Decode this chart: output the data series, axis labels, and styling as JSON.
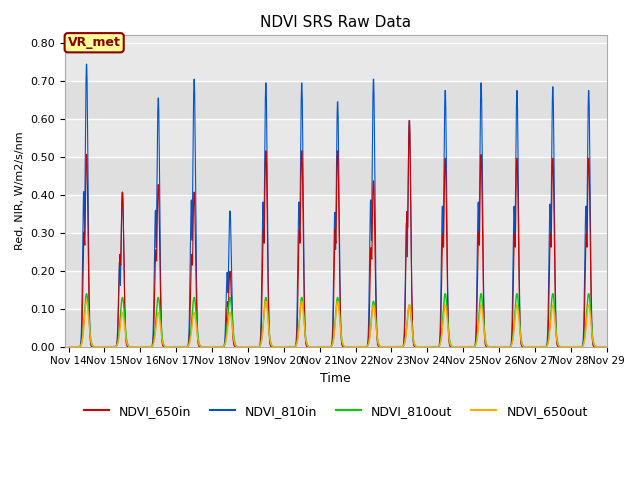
{
  "title": "NDVI SRS Raw Data",
  "xlabel": "Time",
  "ylabel": "Red, NIR, W/m2/s/nm",
  "ylim": [
    0.0,
    0.82
  ],
  "yticks": [
    0.0,
    0.1,
    0.2,
    0.3,
    0.4,
    0.5,
    0.6,
    0.7,
    0.8
  ],
  "background_color": "#e8e8e8",
  "vr_met_label": "VR_met",
  "series": {
    "NDVI_650in": {
      "color": "#cc0000",
      "label": "NDVI_650in"
    },
    "NDVI_810in": {
      "color": "#0055cc",
      "label": "NDVI_810in"
    },
    "NDVI_810out": {
      "color": "#00cc00",
      "label": "NDVI_810out"
    },
    "NDVI_650out": {
      "color": "#ffaa00",
      "label": "NDVI_650out"
    }
  },
  "day_peaks": {
    "14": {
      "in650": 0.51,
      "in810": 0.75,
      "out810": 0.14,
      "out650": 0.12
    },
    "15": {
      "in650": 0.41,
      "in810": 0.41,
      "out810": 0.13,
      "out650": 0.09
    },
    "16": {
      "in650": 0.43,
      "in810": 0.66,
      "out810": 0.13,
      "out650": 0.09
    },
    "17": {
      "in650": 0.41,
      "in810": 0.71,
      "out810": 0.13,
      "out650": 0.09
    },
    "18": {
      "in650": 0.2,
      "in810": 0.36,
      "out810": 0.13,
      "out650": 0.09
    },
    "19": {
      "in650": 0.52,
      "in810": 0.7,
      "out810": 0.13,
      "out650": 0.12
    },
    "20": {
      "in650": 0.52,
      "in810": 0.7,
      "out810": 0.13,
      "out650": 0.12
    },
    "21": {
      "in650": 0.52,
      "in810": 0.65,
      "out810": 0.13,
      "out650": 0.12
    },
    "22": {
      "in650": 0.44,
      "in810": 0.71,
      "out810": 0.12,
      "out650": 0.11
    },
    "23": {
      "in650": 0.6,
      "in810": 0.6,
      "out810": 0.11,
      "out650": 0.11
    },
    "24": {
      "in650": 0.5,
      "in810": 0.68,
      "out810": 0.14,
      "out650": 0.11
    },
    "25": {
      "in650": 0.51,
      "in810": 0.7,
      "out810": 0.14,
      "out650": 0.11
    },
    "26": {
      "in650": 0.5,
      "in810": 0.68,
      "out810": 0.14,
      "out650": 0.11
    },
    "27": {
      "in650": 0.5,
      "in810": 0.69,
      "out810": 0.14,
      "out650": 0.11
    },
    "28": {
      "in650": 0.5,
      "in810": 0.68,
      "out810": 0.14,
      "out650": 0.11
    }
  },
  "figsize": [
    6.4,
    4.8
  ],
  "dpi": 100
}
